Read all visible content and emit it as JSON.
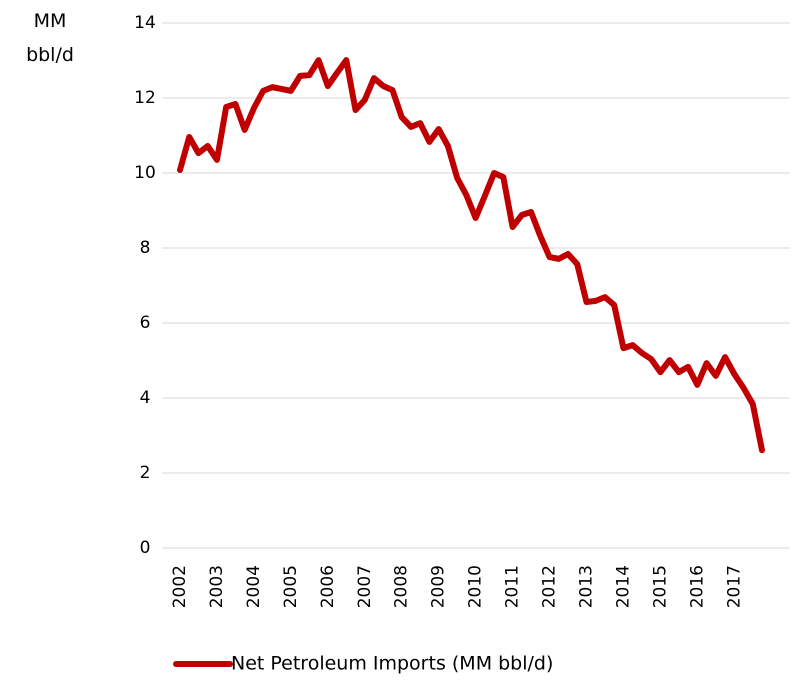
{
  "chart_data": {
    "type": "line",
    "y_axis_label": "MM bbl/d",
    "categories": [
      "2002",
      null,
      null,
      null,
      "2003",
      null,
      null,
      null,
      "2004",
      null,
      null,
      null,
      "2005",
      null,
      null,
      null,
      "2006",
      null,
      null,
      null,
      "2007",
      null,
      null,
      null,
      "2008",
      null,
      null,
      null,
      "2009",
      null,
      null,
      null,
      "2010",
      null,
      null,
      null,
      "2011",
      null,
      null,
      null,
      "2012",
      null,
      null,
      null,
      "2013",
      null,
      null,
      null,
      "2014",
      null,
      null,
      null,
      "2015",
      null,
      null,
      null,
      "2016",
      null,
      null,
      null,
      "2017",
      null,
      null,
      null
    ],
    "series": [
      {
        "name": "Net Petroleum Imports (MM bbl/d)",
        "color": "#c00000",
        "values": [
          10.08,
          10.96,
          10.53,
          10.72,
          10.35,
          11.76,
          11.84,
          11.15,
          11.73,
          12.19,
          12.29,
          12.24,
          12.19,
          12.59,
          12.61,
          13.01,
          12.32,
          12.67,
          13.01,
          11.68,
          11.95,
          12.53,
          12.32,
          12.21,
          11.49,
          11.23,
          11.33,
          10.83,
          11.17,
          10.72,
          9.87,
          9.41,
          8.8,
          9.39,
          10.0,
          9.89,
          8.56,
          8.88,
          8.96,
          8.32,
          7.76,
          7.71,
          7.84,
          7.57,
          6.56,
          6.59,
          6.69,
          6.48,
          5.33,
          5.41,
          5.2,
          5.04,
          4.69,
          5.01,
          4.69,
          4.83,
          4.35,
          4.93,
          4.59,
          5.09,
          4.64,
          4.27,
          3.84,
          2.61
        ]
      }
    ],
    "ylim": [
      0,
      14
    ],
    "yticks": [
      0,
      2,
      4,
      6,
      8,
      10,
      12,
      14
    ],
    "grid": true
  }
}
